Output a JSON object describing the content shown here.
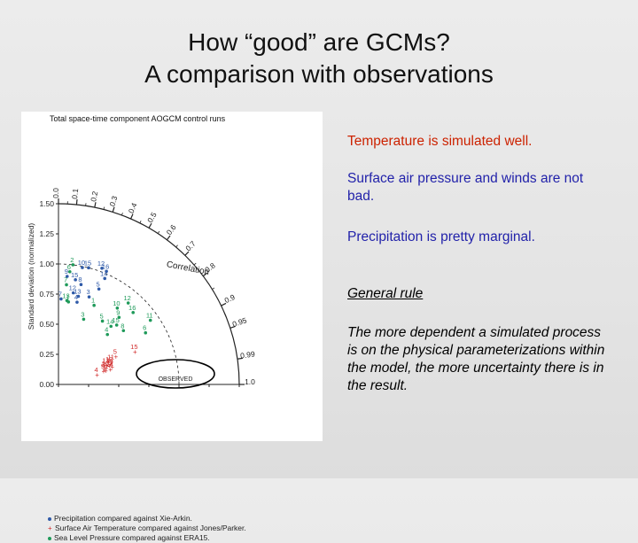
{
  "slide": {
    "title_line1": "How “good” are GCMs?",
    "title_line2": "A comparison with observations"
  },
  "notes": {
    "temperature": "Temperature is simulated well.",
    "pressure": "Surface air pressure and winds are not bad.",
    "precipitation": "Precipitation is pretty marginal.",
    "rule_heading": "General rule",
    "rule_body": "The more dependent a simulated process is on the physical parameterizations within the model, the more uncertainty there is in the result."
  },
  "chart_data": {
    "type": "scatter",
    "subtype": "taylor-diagram",
    "title": "Total space-time component AOGCM control runs",
    "ylabel": "Standard deviation (normalized)",
    "arc_label": "Correlation",
    "observed_label": "OBSERVED",
    "std_ticks": [
      "0.00",
      "0.25",
      "0.50",
      "0.75",
      "1.00",
      "1.25",
      "1.50"
    ],
    "std_tick_values": [
      0,
      0.25,
      0.5,
      0.75,
      1.0,
      1.25,
      1.5
    ],
    "corr_ticks": [
      0.0,
      0.1,
      0.2,
      0.3,
      0.4,
      0.5,
      0.6,
      0.7,
      0.8,
      0.9,
      0.95,
      0.99,
      1.0
    ],
    "corr_tick_labels": [
      "0.0",
      "0.1",
      "0.2",
      "0.3",
      "0.4",
      "0.5",
      "0.6",
      "0.7",
      "0.8",
      "0.9",
      "0.95",
      "0.99",
      "1.0"
    ],
    "colors": {
      "precip": "#2f5aa8",
      "temp": "#d02a2a",
      "slp": "#1f9a5a",
      "axis": "#222222"
    },
    "series": [
      {
        "name": "Precipitation compared against Xie-Arkin.",
        "key": "precip",
        "marker": "dot",
        "points": [
          {
            "label": "12",
            "std": 1.03,
            "corr": 0.35
          },
          {
            "label": "16",
            "std": 1.02,
            "corr": 0.39
          },
          {
            "label": "10",
            "std": 0.99,
            "corr": 0.2
          },
          {
            "label": "15",
            "std": 1.0,
            "corr": 0.25
          },
          {
            "label": "9",
            "std": 0.9,
            "corr": 0.08
          },
          {
            "label": "15",
            "std": 0.88,
            "corr": 0.16
          },
          {
            "label": "14",
            "std": 0.96,
            "corr": 0.4
          },
          {
            "label": "5",
            "std": 0.86,
            "corr": 0.39
          },
          {
            "label": "8",
            "std": 0.85,
            "corr": 0.22
          },
          {
            "label": "12",
            "std": 0.77,
            "corr": 0.16
          },
          {
            "label": "13",
            "std": 0.75,
            "corr": 0.22
          },
          {
            "label": "7",
            "std": 0.71,
            "corr": 0.03
          },
          {
            "label": "4",
            "std": 0.7,
            "corr": 0.22
          },
          {
            "label": "3",
            "std": 0.77,
            "corr": 0.33
          }
        ]
      },
      {
        "name": "Surface Air Temperature compared against Jones/Parker.",
        "key": "temp",
        "marker": "star",
        "points": [
          {
            "label": "15",
            "std": 0.69,
            "corr": 0.92
          },
          {
            "label": "5",
            "std": 0.53,
            "corr": 0.9
          },
          {
            "label": "11",
            "std": 0.48,
            "corr": 0.92
          },
          {
            "label": "12",
            "std": 0.46,
            "corr": 0.93
          },
          {
            "label": "8",
            "std": 0.45,
            "corr": 0.94
          },
          {
            "label": "13",
            "std": 0.43,
            "corr": 0.93
          },
          {
            "label": "10",
            "std": 0.42,
            "corr": 0.945
          },
          {
            "label": "3",
            "std": 0.4,
            "corr": 0.95
          },
          {
            "label": "2",
            "std": 0.41,
            "corr": 0.96
          },
          {
            "label": "14",
            "std": 0.45,
            "corr": 0.96
          },
          {
            "label": "9",
            "std": 0.39,
            "corr": 0.96
          },
          {
            "label": "4",
            "std": 0.33,
            "corr": 0.97
          },
          {
            "label": "7",
            "std": 0.47,
            "corr": 0.95
          }
        ]
      },
      {
        "name": "Sea Level Pressure compared against ERA15.",
        "key": "slp",
        "marker": "dot",
        "points": [
          {
            "label": "2",
            "std": 1.0,
            "corr": 0.12
          },
          {
            "label": "6",
            "std": 0.94,
            "corr": 0.1
          },
          {
            "label": "7",
            "std": 0.83,
            "corr": 0.08
          },
          {
            "label": "13",
            "std": 0.7,
            "corr": 0.1
          },
          {
            "label": "12",
            "std": 0.89,
            "corr": 0.65
          },
          {
            "label": "16",
            "std": 0.86,
            "corr": 0.72
          },
          {
            "label": "10",
            "std": 0.8,
            "corr": 0.61
          },
          {
            "label": "9",
            "std": 0.75,
            "corr": 0.67
          },
          {
            "label": "11",
            "std": 0.93,
            "corr": 0.82
          },
          {
            "label": "5",
            "std": 0.64,
            "corr": 0.57
          },
          {
            "label": "15",
            "std": 0.69,
            "corr": 0.7
          },
          {
            "label": "14",
            "std": 0.65,
            "corr": 0.67
          },
          {
            "label": "4",
            "std": 0.58,
            "corr": 0.7
          },
          {
            "label": "8",
            "std": 0.7,
            "corr": 0.77
          },
          {
            "label": "6",
            "std": 0.84,
            "corr": 0.86
          },
          {
            "label": "3",
            "std": 0.58,
            "corr": 0.36
          },
          {
            "label": "1",
            "std": 0.69,
            "corr": 0.12
          },
          {
            "label": "1",
            "std": 0.72,
            "corr": 0.41
          }
        ]
      }
    ]
  }
}
